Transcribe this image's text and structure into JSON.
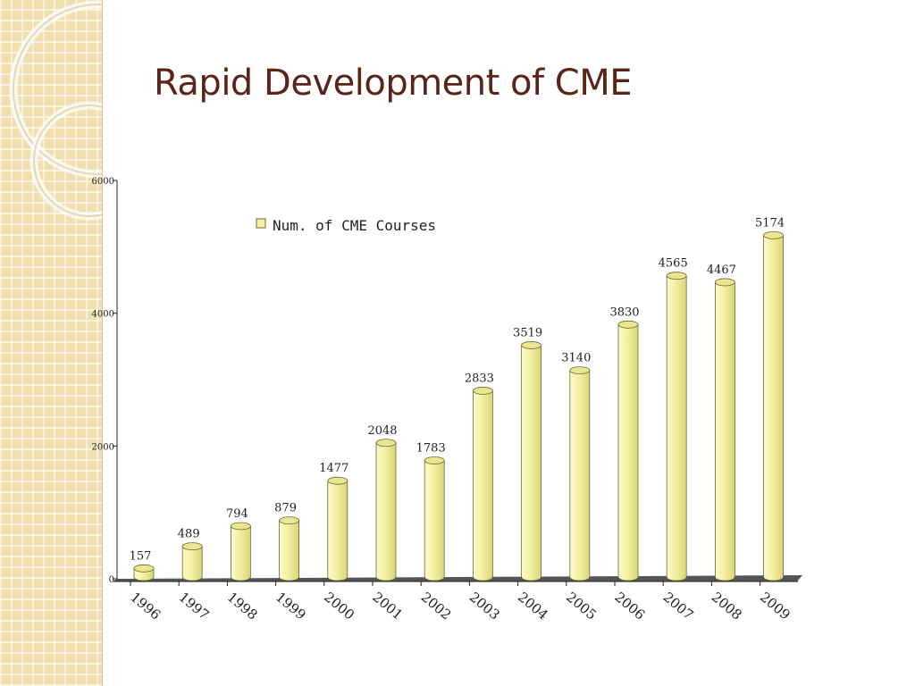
{
  "slide": {
    "title": "Rapid Development of CME"
  },
  "colors": {
    "title": "#5a2418",
    "bar": "#f3f0a0",
    "bar_edge": "#6b6a30",
    "floor": "#555555",
    "panel": "#f1dfb0"
  },
  "chart_data": {
    "type": "bar",
    "title": "",
    "xlabel": "",
    "ylabel": "",
    "categories": [
      "1996",
      "1997",
      "1998",
      "1999",
      "2000",
      "2001",
      "2002",
      "2003",
      "2004",
      "2005",
      "2006",
      "2007",
      "2008",
      "2009"
    ],
    "series": [
      {
        "name": "Num. of CME Courses",
        "values": [
          157,
          489,
          794,
          879,
          1477,
          2048,
          1783,
          2833,
          3519,
          3140,
          3830,
          4565,
          4467,
          5174
        ]
      }
    ],
    "ylim": [
      0,
      6000
    ],
    "yticks": [
      0,
      2000,
      4000,
      6000
    ],
    "data_labels": true,
    "legend": "top-left",
    "grid": false
  }
}
